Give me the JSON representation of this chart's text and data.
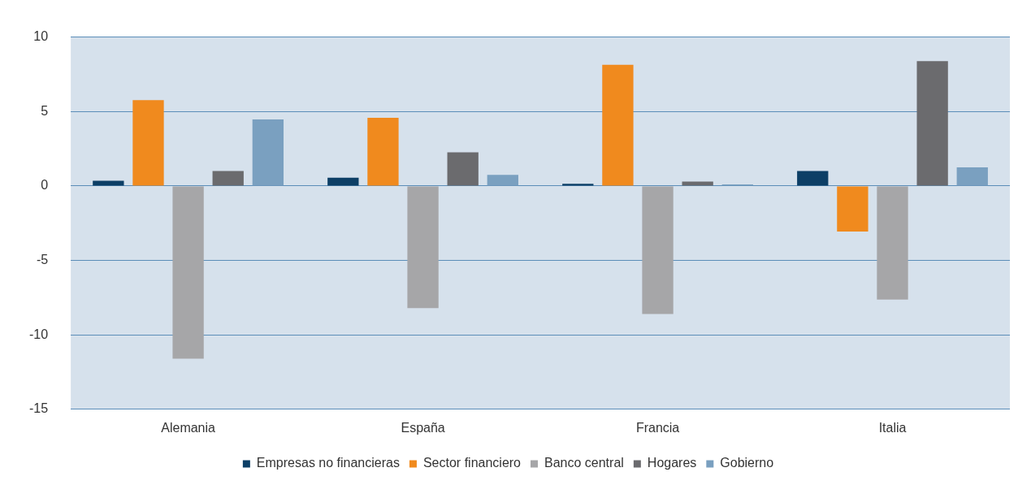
{
  "chart_data": {
    "type": "bar",
    "categories": [
      "Alemania",
      "España",
      "Francia",
      "Italia"
    ],
    "series": [
      {
        "name": "Empresas no financieras",
        "color": "#0d3f66",
        "values": [
          0.35,
          0.55,
          0.15,
          1.0
        ]
      },
      {
        "name": "Sector financiero",
        "color": "#f08a1e",
        "values": [
          5.77,
          4.57,
          8.13,
          -3.06
        ]
      },
      {
        "name": "Banco central",
        "color": "#a6a6a8",
        "values": [
          -11.6,
          -8.2,
          -8.6,
          -7.63
        ]
      },
      {
        "name": "Hogares",
        "color": "#6b6b6e",
        "values": [
          1.0,
          2.26,
          0.3,
          8.38
        ]
      },
      {
        "name": "Gobierno",
        "color": "#7aa0c0",
        "values": [
          4.47,
          0.75,
          0.1,
          1.25
        ]
      }
    ],
    "ylim": [
      -15,
      10
    ],
    "yticks": [
      -15,
      -10,
      -5,
      0,
      5,
      10
    ],
    "grid": "y",
    "legend": "bottom",
    "marker": "square"
  }
}
